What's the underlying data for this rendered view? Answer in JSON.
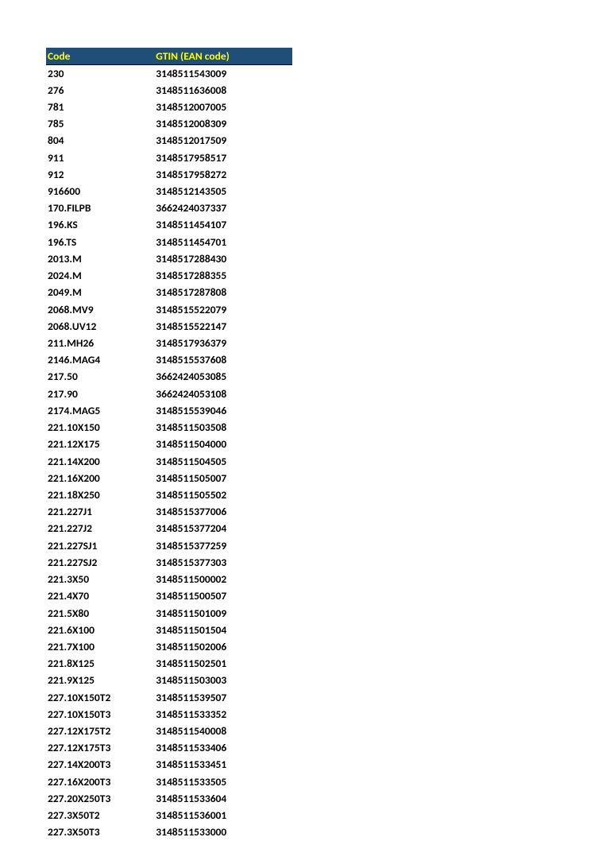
{
  "table": {
    "header_bg": "#1f4e79",
    "header_fg": "#ffff00",
    "columns": [
      "Code",
      "GTIN (EAN code)"
    ],
    "rows": [
      [
        "230",
        "3148511543009"
      ],
      [
        "276",
        "3148511636008"
      ],
      [
        "781",
        "3148512007005"
      ],
      [
        "785",
        "3148512008309"
      ],
      [
        "804",
        "3148512017509"
      ],
      [
        "911",
        "3148517958517"
      ],
      [
        "912",
        "3148517958272"
      ],
      [
        "916600",
        "3148512143505"
      ],
      [
        "170.FILPB",
        "3662424037337"
      ],
      [
        "196.KS",
        "3148511454107"
      ],
      [
        "196.TS",
        "3148511454701"
      ],
      [
        "2013.M",
        "3148517288430"
      ],
      [
        "2024.M",
        "3148517288355"
      ],
      [
        "2049.M",
        "3148517287808"
      ],
      [
        "2068.MV9",
        "3148515522079"
      ],
      [
        "2068.UV12",
        "3148515522147"
      ],
      [
        "211.MH26",
        "3148517936379"
      ],
      [
        "2146.MAG4",
        "3148515537608"
      ],
      [
        "217.50",
        "3662424053085"
      ],
      [
        "217.90",
        "3662424053108"
      ],
      [
        "2174.MAG5",
        "3148515539046"
      ],
      [
        "221.10X150",
        "3148511503508"
      ],
      [
        "221.12X175",
        "3148511504000"
      ],
      [
        "221.14X200",
        "3148511504505"
      ],
      [
        "221.16X200",
        "3148511505007"
      ],
      [
        "221.18X250",
        "3148511505502"
      ],
      [
        "221.227J1",
        "3148515377006"
      ],
      [
        "221.227J2",
        "3148515377204"
      ],
      [
        "221.227SJ1",
        "3148515377259"
      ],
      [
        "221.227SJ2",
        "3148515377303"
      ],
      [
        "221.3X50",
        "3148511500002"
      ],
      [
        "221.4X70",
        "3148511500507"
      ],
      [
        "221.5X80",
        "3148511501009"
      ],
      [
        "221.6X100",
        "3148511501504"
      ],
      [
        "221.7X100",
        "3148511502006"
      ],
      [
        "221.8X125",
        "3148511502501"
      ],
      [
        "221.9X125",
        "3148511503003"
      ],
      [
        "227.10X150T2",
        "3148511539507"
      ],
      [
        "227.10X150T3",
        "3148511533352"
      ],
      [
        "227.12X175T2",
        "3148511540008"
      ],
      [
        "227.12X175T3",
        "3148511533406"
      ],
      [
        "227.14X200T3",
        "3148511533451"
      ],
      [
        "227.16X200T3",
        "3148511533505"
      ],
      [
        "227.20X250T3",
        "3148511533604"
      ],
      [
        "227.3X50T2",
        "3148511536001"
      ],
      [
        "227.3X50T3",
        "3148511533000"
      ]
    ]
  }
}
